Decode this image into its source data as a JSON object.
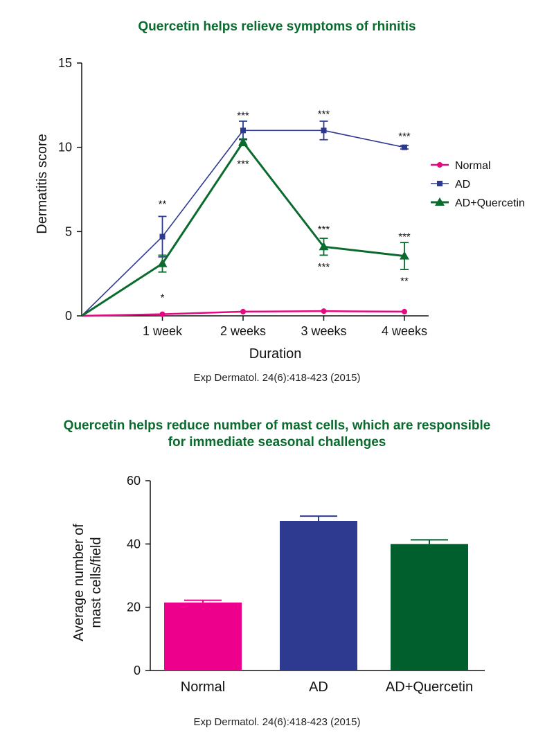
{
  "chart_data": [
    {
      "type": "line",
      "title": "Quercetin helps relieve symptoms of rhinitis",
      "xlabel": "Duration",
      "ylabel": "Dermatitis score",
      "x": [
        0,
        1,
        2,
        3,
        4
      ],
      "categories": [
        "",
        "1 week",
        "2 weeks",
        "3 weeks",
        "4 weeks"
      ],
      "ylim": [
        0,
        15
      ],
      "yticks": [
        0,
        5,
        10,
        15
      ],
      "legend_position": "right",
      "grid": false,
      "series": [
        {
          "name": "Normal",
          "color": "#e5097f",
          "marker": "circle",
          "values": [
            0,
            0.1,
            0.25,
            0.28,
            0.25
          ],
          "errors": [
            0,
            0,
            0,
            0,
            0
          ]
        },
        {
          "name": "AD",
          "color": "#2e3a8f",
          "marker": "square",
          "values": [
            0,
            4.7,
            11.0,
            11.0,
            10.0
          ],
          "errors": [
            0,
            1.2,
            0.55,
            0.55,
            0.1
          ]
        },
        {
          "name": "AD+Quercetin",
          "color": "#0b6a2e",
          "marker": "triangle",
          "values": [
            0,
            3.1,
            10.3,
            4.1,
            3.55
          ],
          "errors": [
            0,
            0.5,
            0.2,
            0.5,
            0.8
          ]
        }
      ],
      "annotations": [
        {
          "x": 1,
          "text": "**",
          "series": "AD"
        },
        {
          "x": 1,
          "text": "*",
          "series": "AD+Quercetin"
        },
        {
          "x": 2,
          "text": "***",
          "series": "AD"
        },
        {
          "x": 2,
          "text": "***",
          "series": "AD+Quercetin"
        },
        {
          "x": 3,
          "text": "***",
          "series": "AD"
        },
        {
          "x": 3,
          "text": "***",
          "series": "AD+Quercetin"
        },
        {
          "x": 3,
          "text": "***",
          "series": "AD+Quercetin"
        },
        {
          "x": 4,
          "text": "***",
          "series": "AD"
        },
        {
          "x": 4,
          "text": "***",
          "series": "AD+Quercetin"
        },
        {
          "x": 4,
          "text": "**",
          "series": "AD+Quercetin"
        }
      ],
      "citation": "Exp Dermatol. 24(6):418-423 (2015)"
    },
    {
      "type": "bar",
      "title_lines": [
        "Quercetin helps reduce number of mast cells, which are responsible",
        "for immediate seasonal challenges"
      ],
      "xlabel": "",
      "ylabel_lines": [
        "Average number of",
        "mast cells/field"
      ],
      "categories": [
        "Normal",
        "AD",
        "AD+Quercetin"
      ],
      "values": [
        21.5,
        47.3,
        40.0
      ],
      "errors": [
        0.7,
        1.5,
        1.3
      ],
      "colors": [
        "#ec008c",
        "#2e3a8f",
        "#005f2c"
      ],
      "ylim": [
        0,
        60
      ],
      "yticks": [
        0,
        20,
        40,
        60
      ],
      "grid": false,
      "citation": "Exp Dermatol. 24(6):418-423 (2015)"
    }
  ]
}
